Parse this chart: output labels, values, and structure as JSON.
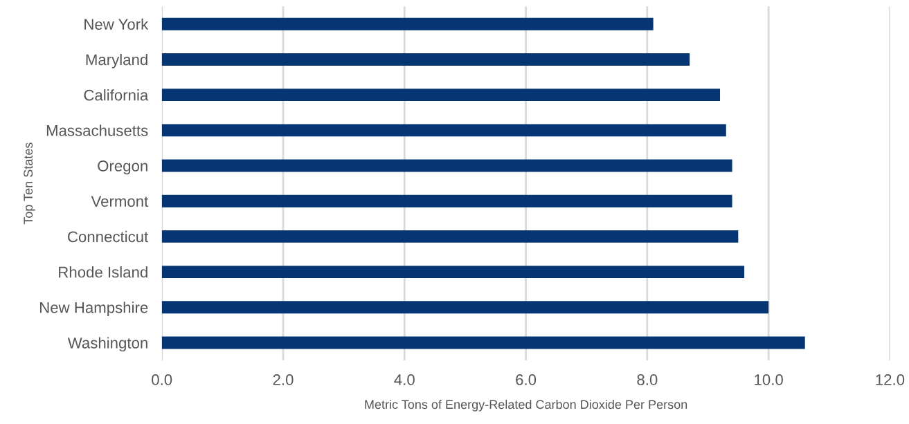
{
  "chart_data": {
    "type": "bar",
    "orientation": "horizontal",
    "xlabel": "Metric Tons of Energy-Related Carbon Dioxide Per Person",
    "ylabel": "Top Ten States",
    "categories": [
      "New York",
      "Maryland",
      "California",
      "Massachusetts",
      "Oregon",
      "Vermont",
      "Connecticut",
      "Rhode Island",
      "New Hampshire",
      "Washington"
    ],
    "values": [
      8.1,
      8.7,
      9.2,
      9.3,
      9.4,
      9.4,
      9.5,
      9.6,
      10.0,
      10.6
    ],
    "color": "#063573",
    "xlim": [
      0,
      12
    ],
    "xticks": [
      {
        "value": 0,
        "label": "0.0"
      },
      {
        "value": 2,
        "label": "2.0"
      },
      {
        "value": 4,
        "label": "4.0"
      },
      {
        "value": 6,
        "label": "6.0"
      },
      {
        "value": 8,
        "label": "8.0"
      },
      {
        "value": 10,
        "label": "10.0"
      },
      {
        "value": 12,
        "label": "12.0"
      }
    ],
    "grid": "x"
  }
}
